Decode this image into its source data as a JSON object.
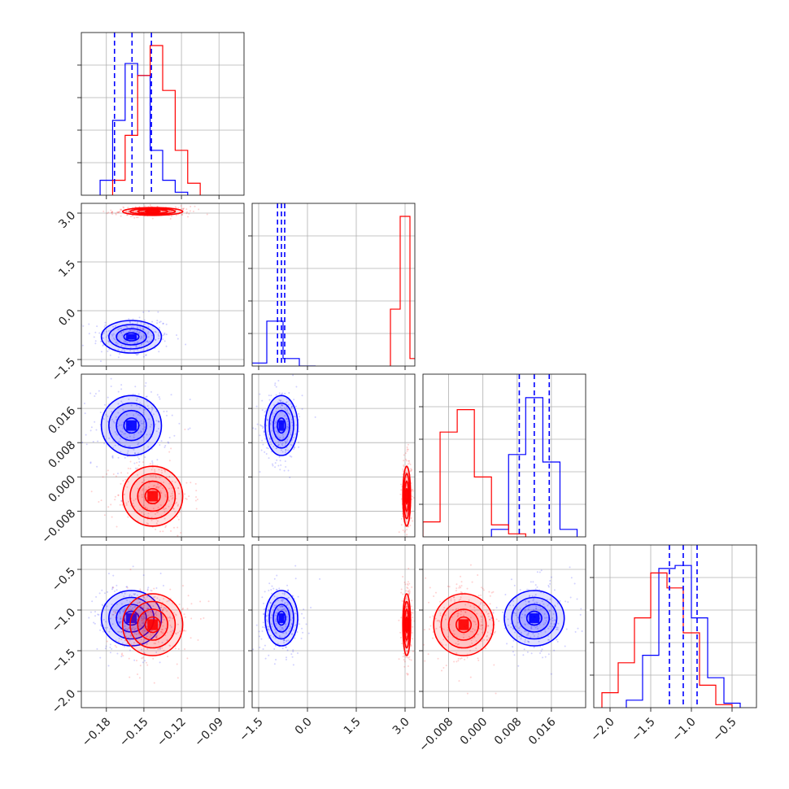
{
  "chart_data": {
    "type": "corner",
    "parameters": [
      {
        "ticks": [
          -0.18,
          -0.15,
          -0.12,
          -0.09
        ],
        "tick_labels": [
          "−0.18",
          "−0.15",
          "−0.12",
          "−0.09"
        ],
        "range": [
          -0.2,
          -0.07
        ]
      },
      {
        "ticks": [
          -1.5,
          0.0,
          1.5,
          3.0
        ],
        "tick_labels": [
          "−1.5",
          "0.0",
          "1.5",
          "3.0"
        ],
        "range": [
          -1.7,
          3.3
        ]
      },
      {
        "ticks": [
          -0.008,
          0.0,
          0.008,
          0.016
        ],
        "tick_labels": [
          "−0.008",
          "0.000",
          "0.008",
          "0.016"
        ],
        "range": [
          -0.014,
          0.024
        ]
      },
      {
        "ticks": [
          -2.0,
          -1.5,
          -1.0,
          -0.5
        ],
        "tick_labels": [
          "−2.0",
          "−1.5",
          "−1.0",
          "−0.5"
        ],
        "range": [
          -2.2,
          -0.2
        ]
      }
    ],
    "grid": true,
    "series": [
      {
        "color": "#0000ff",
        "means": [
          -0.16,
          -0.8,
          0.012,
          -1.1
        ],
        "stds": [
          0.012,
          0.25,
          0.0035,
          0.17
        ],
        "quantiles": [
          [
            -0.1735,
            -0.1595,
            -0.144
          ],
          [
            -0.92,
            -0.8,
            -0.7
          ],
          [
            0.0085,
            0.012,
            0.0155
          ],
          [
            -1.27,
            -1.1,
            -0.93
          ]
        ],
        "hist_x": [
          [
            -0.18,
            -0.17,
            -0.16,
            -0.15,
            -0.14,
            -0.13,
            -0.12
          ],
          [
            -1.5,
            -1.0,
            -0.5,
            0.0
          ],
          [
            0.004,
            0.008,
            0.012,
            0.016,
            0.02
          ],
          [
            -1.7,
            -1.5,
            -1.3,
            -1.1,
            -0.9,
            -0.7,
            -0.5
          ]
        ],
        "hist_y": [
          [
            0.1,
            0.5,
            0.88,
            0.8,
            0.3,
            0.1,
            0.02
          ],
          [
            0.02,
            0.3,
            0.05,
            0.0
          ],
          [
            0.05,
            0.55,
            0.93,
            0.5,
            0.05
          ],
          [
            0.05,
            0.35,
            0.93,
            0.95,
            0.6,
            0.2,
            0.03
          ]
        ]
      },
      {
        "color": "#ff0000",
        "means": [
          -0.143,
          3.05,
          -0.0045,
          -1.18
        ],
        "stds": [
          0.012,
          0.06,
          0.0035,
          0.19
        ],
        "hist_x": [
          [
            -0.17,
            -0.16,
            -0.15,
            -0.14,
            -0.13,
            -0.12,
            -0.11
          ],
          [
            2.7,
            3.0,
            3.3
          ],
          [
            -0.012,
            -0.008,
            -0.004,
            0.0,
            0.004,
            0.008
          ],
          [
            -2.0,
            -1.8,
            -1.6,
            -1.4,
            -1.2,
            -1.0,
            -0.8,
            -0.6
          ]
        ],
        "hist_y": [
          [
            0.1,
            0.4,
            0.8,
            1.0,
            0.7,
            0.3,
            0.08
          ],
          [
            0.38,
            1.0,
            0.05
          ],
          [
            0.1,
            0.7,
            0.85,
            0.4,
            0.08,
            0.02
          ],
          [
            0.1,
            0.3,
            0.6,
            0.9,
            0.8,
            0.5,
            0.15,
            0.02
          ]
        ]
      }
    ],
    "contour_levels_sigma": [
      0.5,
      1.0,
      1.5,
      2.0
    ],
    "quantile_line_style": "dashed",
    "quantile_line_color": "#0000ff"
  }
}
